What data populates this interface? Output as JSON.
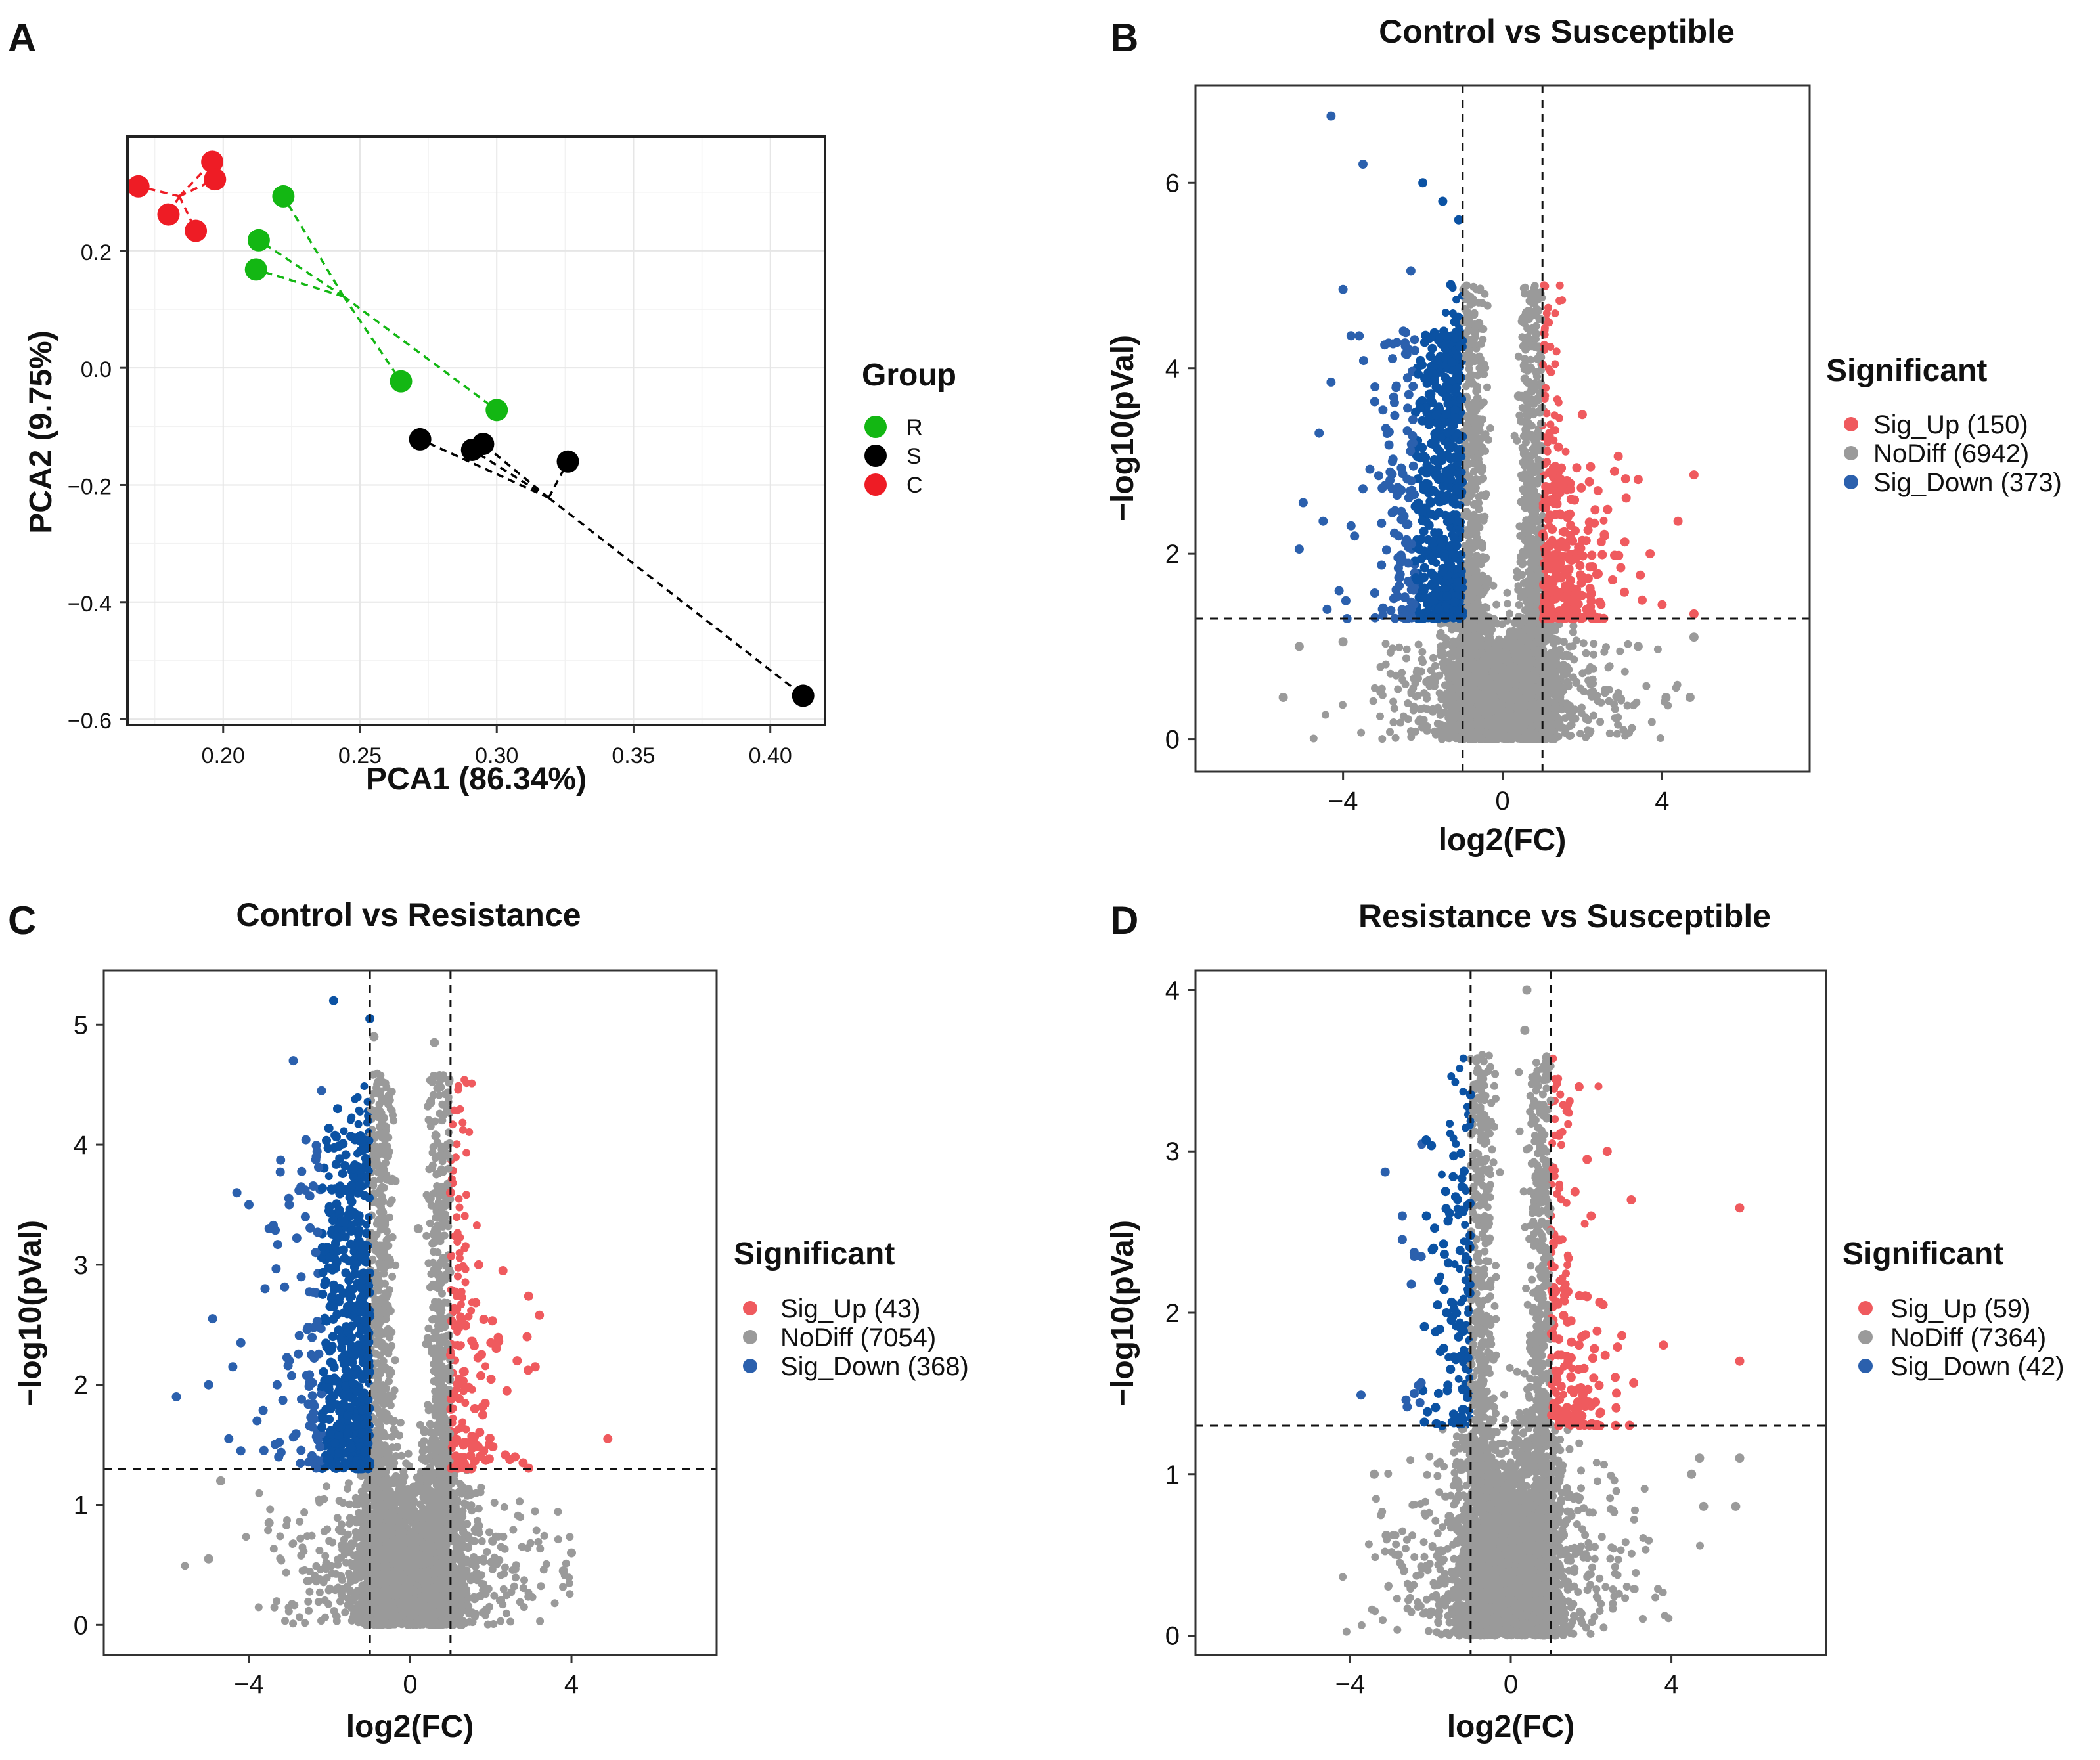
{
  "panels": {
    "A": {
      "letter": "A"
    },
    "B": {
      "letter": "B",
      "title": "Control vs Susceptible"
    },
    "C": {
      "letter": "C",
      "title": "Control vs Resistance"
    },
    "D": {
      "letter": "D",
      "title": "Resistance vs Susceptible"
    }
  },
  "colors": {
    "R": "#13b713",
    "S": "#000000",
    "C": "#ee1c25",
    "sig_up": "#ef5a5e",
    "nodiff": "#9a9a9a",
    "sig_down": "#2b60ad",
    "sig_down_dense": "#0b52a3"
  },
  "chart_data": [
    {
      "id": "A",
      "type": "scatter",
      "title": "",
      "xlabel": "PCA1 (86.34%)",
      "ylabel": "PCA2 (9.75%)",
      "xlim": [
        0.165,
        0.42
      ],
      "ylim": [
        -0.61,
        0.395
      ],
      "xticks": [
        0.2,
        0.25,
        0.3,
        0.35,
        0.4
      ],
      "xtick_labels": [
        "0.20",
        "0.25",
        "0.30",
        "0.35",
        "0.40"
      ],
      "yticks": [
        -0.6,
        -0.4,
        -0.2,
        0.0,
        0.2
      ],
      "ytick_labels": [
        "−0.6",
        "−0.4",
        "−0.2",
        "0.0",
        "0.2"
      ],
      "grid": true,
      "legend_title": "Group",
      "legend_position": "right",
      "series": [
        {
          "name": "R",
          "color": "#13b713",
          "centroid": [
            0.244,
            0.122
          ],
          "points": [
            [
              0.222,
              0.293
            ],
            [
              0.213,
              0.218
            ],
            [
              0.212,
              0.168
            ],
            [
              0.265,
              -0.023
            ],
            [
              0.3,
              -0.072
            ]
          ]
        },
        {
          "name": "S",
          "color": "#000000",
          "centroid": [
            0.319,
            -0.222
          ],
          "points": [
            [
              0.272,
              -0.122
            ],
            [
              0.291,
              -0.14
            ],
            [
              0.295,
              -0.13
            ],
            [
              0.326,
              -0.16
            ],
            [
              0.412,
              -0.56
            ]
          ]
        },
        {
          "name": "C",
          "color": "#ee1c25",
          "centroid": [
            0.184,
            0.293
          ],
          "points": [
            [
              0.169,
              0.31
            ],
            [
              0.18,
              0.262
            ],
            [
              0.19,
              0.234
            ],
            [
              0.196,
              0.352
            ],
            [
              0.197,
              0.322
            ]
          ]
        }
      ]
    },
    {
      "id": "B",
      "type": "scatter",
      "title": "Control vs Susceptible",
      "xlabel": "log2(FC)",
      "ylabel": "−log10(pVal)",
      "xlim": [
        -7.7,
        7.7
      ],
      "ylim": [
        -0.35,
        7.05
      ],
      "xticks": [
        -4,
        0,
        4
      ],
      "xtick_labels": [
        "−4",
        "0",
        "4"
      ],
      "yticks": [
        0,
        2,
        4,
        6
      ],
      "ytick_labels": [
        "0",
        "2",
        "4",
        "6"
      ],
      "fc_threshold": 1,
      "pval_threshold_line": 1.3,
      "legend_title": "Significant",
      "legend_position": "right",
      "legend": [
        {
          "label": "Sig_Up (150)",
          "color": "#ef5a5e"
        },
        {
          "label": "NoDiff (6942)",
          "color": "#9a9a9a"
        },
        {
          "label": "Sig_Down (373)",
          "color": "#2b60ad"
        }
      ],
      "counts": {
        "sig_up": 150,
        "nodiff": 6942,
        "sig_down": 373
      },
      "highlight_points": [
        [
          -4.3,
          6.72
        ],
        [
          -3.5,
          6.2
        ],
        [
          -2.0,
          6.0
        ],
        [
          -1.5,
          5.8
        ],
        [
          -1.1,
          5.6
        ],
        [
          -4.0,
          4.85
        ],
        [
          -2.3,
          5.05
        ],
        [
          -1.3,
          4.9
        ],
        [
          -1.2,
          4.5
        ],
        [
          -1.4,
          4.35
        ],
        [
          -2.35,
          4.2
        ],
        [
          -3.8,
          4.35
        ],
        [
          -2.4,
          4.15
        ],
        [
          -4.3,
          3.85
        ],
        [
          -3.2,
          3.8
        ],
        [
          -4.6,
          3.3
        ],
        [
          -3.0,
          3.55
        ],
        [
          -5.0,
          2.55
        ],
        [
          -4.5,
          2.35
        ],
        [
          -5.1,
          2.05
        ],
        [
          -3.8,
          2.3
        ],
        [
          -3.5,
          2.7
        ],
        [
          -4.1,
          1.6
        ],
        [
          -4.4,
          1.4
        ],
        [
          -3.9,
          1.3
        ],
        [
          0.8,
          4.6
        ],
        [
          0.7,
          4.0
        ],
        [
          0.4,
          3.7
        ],
        [
          0.55,
          3.1
        ],
        [
          2.0,
          3.5
        ],
        [
          2.9,
          3.05
        ],
        [
          4.8,
          2.85
        ],
        [
          4.4,
          2.35
        ],
        [
          3.4,
          2.8
        ],
        [
          3.1,
          2.6
        ],
        [
          3.7,
          2.0
        ],
        [
          4.0,
          1.45
        ],
        [
          4.8,
          1.35
        ],
        [
          3.5,
          1.5
        ],
        [
          1.4,
          3.15
        ],
        [
          1.3,
          2.9
        ],
        [
          3.4,
          1.0
        ],
        [
          4.8,
          1.1
        ],
        [
          4.7,
          0.45
        ],
        [
          4.1,
          0.45
        ],
        [
          -5.5,
          0.45
        ],
        [
          -5.1,
          1.0
        ],
        [
          -4.0,
          1.05
        ]
      ]
    },
    {
      "id": "C",
      "type": "scatter",
      "title": "Control vs Resistance",
      "xlabel": "log2(FC)",
      "ylabel": "−log10(pVal)",
      "xlim": [
        -7.6,
        7.6
      ],
      "ylim": [
        -0.25,
        5.45
      ],
      "xticks": [
        -4,
        0,
        4
      ],
      "xtick_labels": [
        "−4",
        "0",
        "4"
      ],
      "yticks": [
        0,
        1,
        2,
        3,
        4,
        5
      ],
      "ytick_labels": [
        "0",
        "1",
        "2",
        "3",
        "4",
        "5"
      ],
      "fc_threshold": 1,
      "pval_threshold_line": 1.3,
      "legend_title": "Significant",
      "legend_position": "right",
      "legend": [
        {
          "label": "Sig_Up (43)",
          "color": "#ef5a5e"
        },
        {
          "label": "NoDiff (7054)",
          "color": "#9a9a9a"
        },
        {
          "label": "Sig_Down (368)",
          "color": "#2b60ad"
        }
      ],
      "counts": {
        "sig_up": 43,
        "nodiff": 7054,
        "sig_down": 368
      },
      "highlight_points": [
        [
          -1.9,
          5.2
        ],
        [
          -1.0,
          5.05
        ],
        [
          -0.9,
          4.9
        ],
        [
          -2.9,
          4.7
        ],
        [
          -2.2,
          4.45
        ],
        [
          -1.8,
          4.3
        ],
        [
          -4.3,
          3.6
        ],
        [
          -4.0,
          3.5
        ],
        [
          -3.0,
          3.5
        ],
        [
          -3.5,
          3.3
        ],
        [
          -2.6,
          3.4
        ],
        [
          -1.5,
          3.6
        ],
        [
          -4.9,
          2.55
        ],
        [
          -5.0,
          2.0
        ],
        [
          -5.8,
          1.9
        ],
        [
          -4.5,
          1.55
        ],
        [
          -4.2,
          1.45
        ],
        [
          -3.8,
          1.7
        ],
        [
          -4.2,
          2.35
        ],
        [
          -4.4,
          2.15
        ],
        [
          -3.3,
          2.0
        ],
        [
          -3.6,
          2.8
        ],
        [
          -3.0,
          2.2
        ],
        [
          1.7,
          3.0
        ],
        [
          2.3,
          2.95
        ],
        [
          2.9,
          2.4
        ],
        [
          3.1,
          2.15
        ],
        [
          2.4,
          1.95
        ],
        [
          2.0,
          2.35
        ],
        [
          4.9,
          1.55
        ],
        [
          2.8,
          1.35
        ],
        [
          2.6,
          1.4
        ],
        [
          1.8,
          1.75
        ],
        [
          1.6,
          1.5
        ],
        [
          0.6,
          4.85
        ],
        [
          0.5,
          4.35
        ],
        [
          1.0,
          3.6
        ],
        [
          0.2,
          3.3
        ],
        [
          -5.0,
          0.55
        ],
        [
          -4.7,
          1.2
        ],
        [
          3.8,
          0.45
        ],
        [
          4.0,
          0.6
        ],
        [
          -3.5,
          0.85
        ]
      ]
    },
    {
      "id": "D",
      "type": "scatter",
      "title": "Resistance vs Susceptible",
      "xlabel": "log2(FC)",
      "ylabel": "−log10(pVal)",
      "xlim": [
        -7.85,
        7.85
      ],
      "ylim": [
        -0.12,
        4.12
      ],
      "xticks": [
        -4,
        0,
        4
      ],
      "xtick_labels": [
        "−4",
        "0",
        "4"
      ],
      "yticks": [
        0,
        1,
        2,
        3,
        4
      ],
      "ytick_labels": [
        "0",
        "1",
        "2",
        "3",
        "4"
      ],
      "fc_threshold": 1,
      "pval_threshold_line": 1.3,
      "legend_title": "Significant",
      "legend_position": "right",
      "legend": [
        {
          "label": "Sig_Up (59)",
          "color": "#ef5a5e"
        },
        {
          "label": "NoDiff (7364)",
          "color": "#9a9a9a"
        },
        {
          "label": "Sig_Down (42)",
          "color": "#2b60ad"
        }
      ],
      "counts": {
        "sig_up": 59,
        "nodiff": 7364,
        "sig_down": 42
      },
      "highlight_points": [
        [
          0.4,
          4.0
        ],
        [
          0.35,
          3.75
        ],
        [
          -1.0,
          3.35
        ],
        [
          -0.7,
          3.45
        ],
        [
          0.9,
          3.45
        ],
        [
          1.7,
          3.4
        ],
        [
          1.4,
          3.25
        ],
        [
          2.4,
          3.0
        ],
        [
          1.9,
          2.95
        ],
        [
          1.6,
          2.75
        ],
        [
          3.0,
          2.7
        ],
        [
          2.0,
          2.6
        ],
        [
          5.7,
          2.65
        ],
        [
          1.2,
          2.45
        ],
        [
          1.9,
          2.1
        ],
        [
          2.3,
          2.05
        ],
        [
          1.5,
          1.95
        ],
        [
          3.8,
          1.8
        ],
        [
          5.7,
          1.7
        ],
        [
          2.6,
          1.6
        ],
        [
          2.2,
          1.55
        ],
        [
          1.7,
          1.8
        ],
        [
          -2.7,
          2.6
        ],
        [
          -2.1,
          2.6
        ],
        [
          -2.4,
          2.35
        ],
        [
          -1.8,
          2.2
        ],
        [
          -1.6,
          2.0
        ],
        [
          -1.3,
          1.85
        ],
        [
          -1.5,
          1.65
        ],
        [
          -2.3,
          1.55
        ],
        [
          -1.8,
          1.5
        ],
        [
          -1.2,
          1.4
        ],
        [
          5.7,
          1.1
        ],
        [
          4.7,
          1.1
        ],
        [
          4.5,
          1.0
        ],
        [
          -3.4,
          1.0
        ],
        [
          4.8,
          0.8
        ],
        [
          5.6,
          0.8
        ],
        [
          -2.8,
          0.5
        ],
        [
          -3.1,
          0.62
        ]
      ]
    }
  ]
}
